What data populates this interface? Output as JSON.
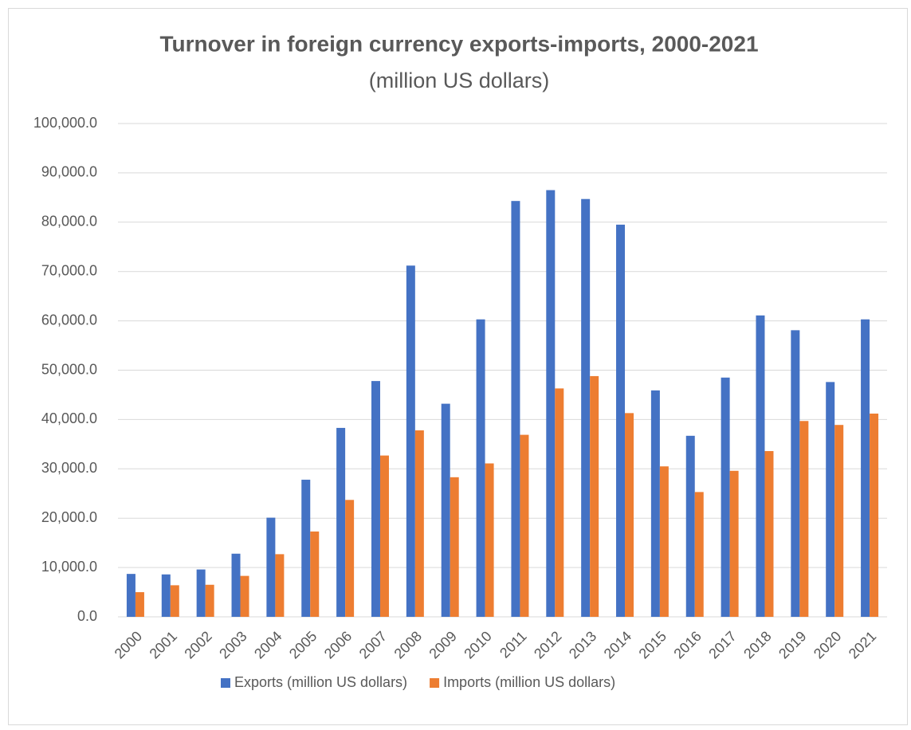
{
  "chart_data": {
    "type": "bar",
    "title": "Turnover in foreign currency exports-imports, 2000-2021",
    "subtitle": "(million US dollars)",
    "categories": [
      "2000",
      "2001",
      "2002",
      "2003",
      "2004",
      "2005",
      "2006",
      "2007",
      "2008",
      "2009",
      "2010",
      "2011",
      "2012",
      "2013",
      "2014",
      "2015",
      "2016",
      "2017",
      "2018",
      "2019",
      "2020",
      "2021"
    ],
    "series": [
      {
        "name": "Exports (million US dollars)",
        "color": "#4472c4",
        "values": [
          8700,
          8600,
          9600,
          12800,
          20100,
          27800,
          38300,
          47800,
          71200,
          43200,
          60300,
          84300,
          86500,
          84700,
          79500,
          45900,
          36700,
          48500,
          61100,
          58100,
          47600,
          60300
        ]
      },
      {
        "name": "Imports (million US dollars)",
        "color": "#ed7d31",
        "values": [
          5000,
          6400,
          6500,
          8300,
          12700,
          17300,
          23700,
          32700,
          37800,
          28300,
          31100,
          36900,
          46300,
          48800,
          41300,
          30500,
          25300,
          29600,
          33600,
          39700,
          38900,
          41200
        ]
      }
    ],
    "ylim": [
      0,
      100000
    ],
    "yticks": [
      {
        "value": 0,
        "label": "0.0"
      },
      {
        "value": 10000,
        "label": "10,000.0"
      },
      {
        "value": 20000,
        "label": "20,000.0"
      },
      {
        "value": 30000,
        "label": "30,000.0"
      },
      {
        "value": 40000,
        "label": "40,000.0"
      },
      {
        "value": 50000,
        "label": "50,000.0"
      },
      {
        "value": 60000,
        "label": "60,000.0"
      },
      {
        "value": 70000,
        "label": "70,000.0"
      },
      {
        "value": 80000,
        "label": "80,000.0"
      },
      {
        "value": 90000,
        "label": "90,000.0"
      },
      {
        "value": 100000,
        "label": "100,000.0"
      }
    ],
    "grid": true,
    "legend": "bottom"
  }
}
